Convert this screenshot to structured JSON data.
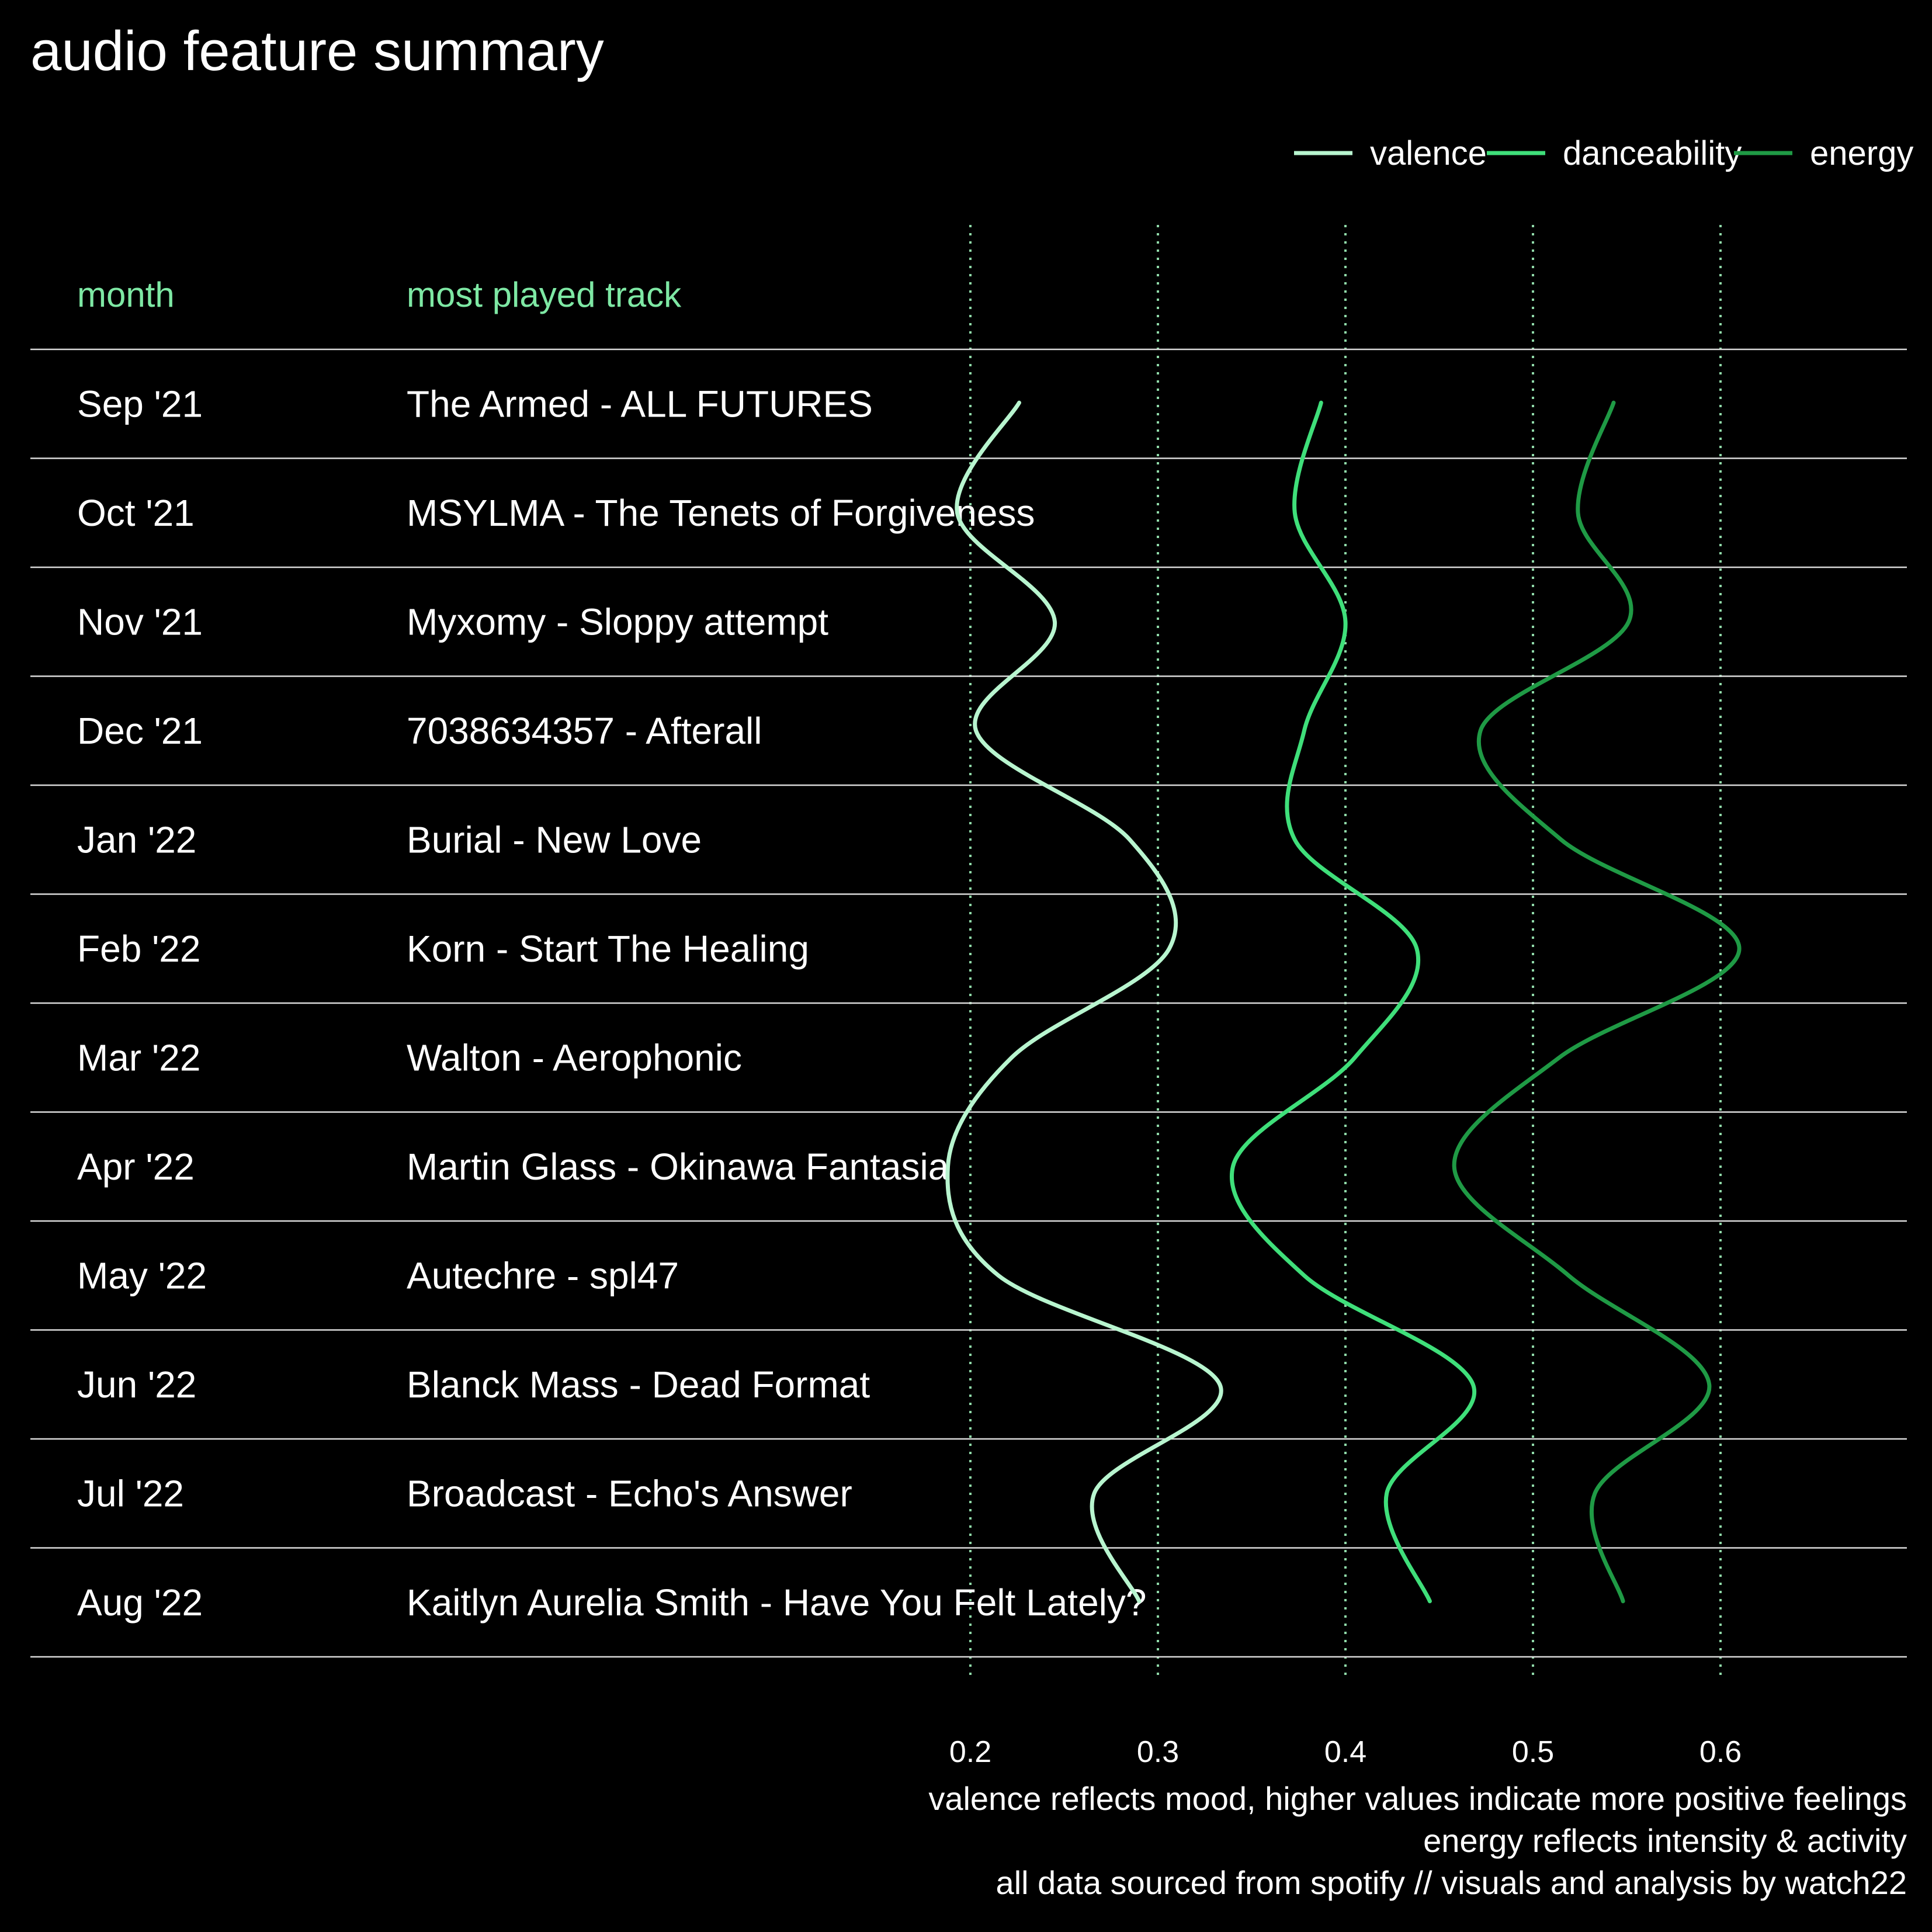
{
  "chart_data": {
    "type": "line",
    "title": "audio feature summary",
    "orientation": "horizontal-values-vertical-months",
    "table_headers": {
      "month": "month",
      "track": "most played track"
    },
    "rows": [
      {
        "month": "Sep '21",
        "track": "The Armed - ALL FUTURES"
      },
      {
        "month": "Oct '21",
        "track": "MSYLMA - The Tenets of Forgiveness"
      },
      {
        "month": "Nov '21",
        "track": "Myxomy - Sloppy attempt"
      },
      {
        "month": "Dec '21",
        "track": "7038634357 - Afterall"
      },
      {
        "month": "Jan '22",
        "track": "Burial - New Love"
      },
      {
        "month": "Feb '22",
        "track": "Korn - Start The Healing"
      },
      {
        "month": "Mar '22",
        "track": "Walton - Aerophonic"
      },
      {
        "month": "Apr '22",
        "track": "Martin Glass - Okinawa Fantasia"
      },
      {
        "month": "May '22",
        "track": "Autechre - spl47"
      },
      {
        "month": "Jun '22",
        "track": "Blanck Mass - Dead Format"
      },
      {
        "month": "Jul '22",
        "track": "Broadcast - Echo's Answer"
      },
      {
        "month": "Aug '22",
        "track": "Kaitlyn Aurelia Smith - Have You Felt Lately?"
      }
    ],
    "series": [
      {
        "name": "valence",
        "color": "#b8f5cf",
        "values": [
          0.226,
          0.193,
          0.245,
          0.203,
          0.285,
          0.306,
          0.222,
          0.188,
          0.215,
          0.333,
          0.266,
          0.29
        ]
      },
      {
        "name": "danceability",
        "color": "#3fdf7a",
        "values": [
          0.387,
          0.373,
          0.4,
          0.378,
          0.373,
          0.438,
          0.405,
          0.34,
          0.378,
          0.468,
          0.422,
          0.445
        ]
      },
      {
        "name": "energy",
        "color": "#1f9a45",
        "values": [
          0.543,
          0.524,
          0.551,
          0.472,
          0.515,
          0.61,
          0.514,
          0.458,
          0.519,
          0.594,
          0.533,
          0.548
        ]
      }
    ],
    "xaxis": {
      "range": [
        0.17,
        0.67
      ],
      "ticks": [
        0.2,
        0.3,
        0.4,
        0.5,
        0.6
      ],
      "tick_labels": [
        "0.2",
        "0.3",
        "0.4",
        "0.5",
        "0.6"
      ],
      "grid": true
    },
    "legend": {
      "position": "top-right",
      "entries": [
        "valence",
        "danceability",
        "energy"
      ]
    },
    "captions": [
      "valence reflects mood, higher values indicate more positive feelings",
      "energy reflects intensity & activity",
      "all data sourced from spotify // visuals and analysis by watch22"
    ]
  },
  "colors": {
    "background": "#000000",
    "text": "#ffffff",
    "header": "#7ee8a4",
    "rule": "#d9d9d9",
    "grid": "#8fd9a8"
  }
}
